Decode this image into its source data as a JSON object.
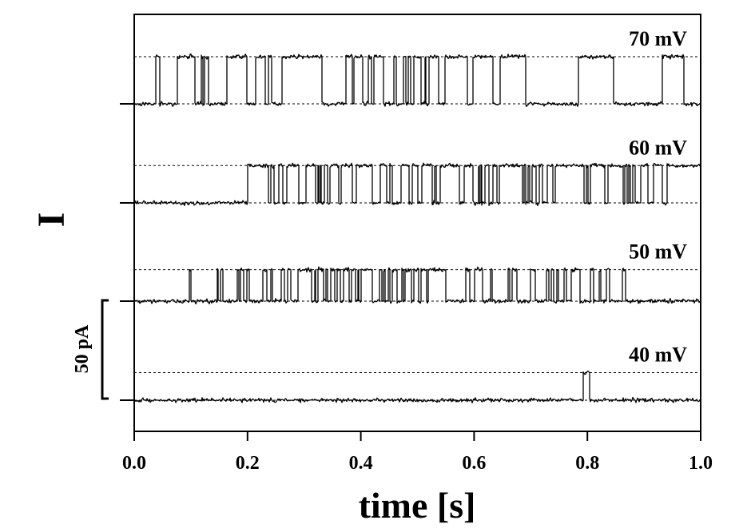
{
  "chart_data": {
    "type": "line",
    "xlabel": "time [s]",
    "ylabel": "I",
    "xlim": [
      0,
      1.0
    ],
    "xticks": [
      0.0,
      0.2,
      0.4,
      0.6,
      0.8,
      1.0
    ],
    "xtick_labels": [
      "0.0",
      "0.2",
      "0.4",
      "0.6",
      "0.8",
      "1.0"
    ],
    "grid": false,
    "scale_bar": {
      "label": "50 pA",
      "value_pA": 50
    },
    "series": [
      {
        "name": "70 mV",
        "open_level_pA": 24,
        "openings_s": [
          [
            0.037,
            0.044
          ],
          [
            0.075,
            0.106
          ],
          [
            0.118,
            0.12
          ],
          [
            0.124,
            0.131
          ],
          [
            0.163,
            0.198
          ],
          [
            0.213,
            0.231
          ],
          [
            0.236,
            0.242
          ],
          [
            0.26,
            0.331
          ],
          [
            0.373,
            0.384
          ],
          [
            0.387,
            0.403
          ],
          [
            0.413,
            0.418
          ],
          [
            0.422,
            0.44
          ],
          [
            0.457,
            0.462
          ],
          [
            0.475,
            0.479
          ],
          [
            0.483,
            0.487
          ],
          [
            0.493,
            0.505
          ],
          [
            0.512,
            0.514
          ],
          [
            0.52,
            0.537
          ],
          [
            0.548,
            0.588
          ],
          [
            0.598,
            0.632
          ],
          [
            0.645,
            0.691
          ],
          [
            0.784,
            0.845
          ],
          [
            0.931,
            0.969
          ]
        ]
      },
      {
        "name": "60 mV",
        "open_level_pA": 19,
        "openings_s": [
          [
            0.2,
            0.236
          ],
          [
            0.241,
            0.246
          ],
          [
            0.254,
            0.262
          ],
          [
            0.269,
            0.29
          ],
          [
            0.302,
            0.319
          ],
          [
            0.323,
            0.325
          ],
          [
            0.328,
            0.33
          ],
          [
            0.335,
            0.341
          ],
          [
            0.345,
            0.36
          ],
          [
            0.365,
            0.385
          ],
          [
            0.392,
            0.42
          ],
          [
            0.434,
            0.445
          ],
          [
            0.45,
            0.455
          ],
          [
            0.47,
            0.484
          ],
          [
            0.49,
            0.5
          ],
          [
            0.507,
            0.526
          ],
          [
            0.53,
            0.532
          ],
          [
            0.539,
            0.574
          ],
          [
            0.582,
            0.598
          ],
          [
            0.607,
            0.609
          ],
          [
            0.611,
            0.613
          ],
          [
            0.618,
            0.625
          ],
          [
            0.632,
            0.639
          ],
          [
            0.644,
            0.685
          ],
          [
            0.688,
            0.69
          ],
          [
            0.694,
            0.698
          ],
          [
            0.701,
            0.709
          ],
          [
            0.714,
            0.72
          ],
          [
            0.728,
            0.738
          ],
          [
            0.742,
            0.793
          ],
          [
            0.798,
            0.8
          ],
          [
            0.805,
            0.83
          ],
          [
            0.836,
            0.862
          ],
          [
            0.866,
            0.87
          ],
          [
            0.873,
            0.875
          ],
          [
            0.88,
            0.883
          ],
          [
            0.894,
            0.906
          ],
          [
            0.916,
            0.931
          ],
          [
            0.94,
            1.0
          ]
        ]
      },
      {
        "name": "50 mV",
        "open_level_pA": 16,
        "openings_s": [
          [
            0.096,
            0.1
          ],
          [
            0.146,
            0.148
          ],
          [
            0.152,
            0.156
          ],
          [
            0.181,
            0.184
          ],
          [
            0.187,
            0.193
          ],
          [
            0.198,
            0.202
          ],
          [
            0.227,
            0.233
          ],
          [
            0.24,
            0.244
          ],
          [
            0.259,
            0.264
          ],
          [
            0.27,
            0.276
          ],
          [
            0.289,
            0.313
          ],
          [
            0.318,
            0.32
          ],
          [
            0.324,
            0.333
          ],
          [
            0.338,
            0.341
          ],
          [
            0.346,
            0.354
          ],
          [
            0.358,
            0.363
          ],
          [
            0.369,
            0.378
          ],
          [
            0.383,
            0.39
          ],
          [
            0.394,
            0.396
          ],
          [
            0.4,
            0.419
          ],
          [
            0.433,
            0.436
          ],
          [
            0.44,
            0.442
          ],
          [
            0.448,
            0.451
          ],
          [
            0.455,
            0.463
          ],
          [
            0.472,
            0.474
          ],
          [
            0.478,
            0.489
          ],
          [
            0.493,
            0.501
          ],
          [
            0.506,
            0.515
          ],
          [
            0.519,
            0.549
          ],
          [
            0.584,
            0.592
          ],
          [
            0.6,
            0.614
          ],
          [
            0.628,
            0.631
          ],
          [
            0.66,
            0.662
          ],
          [
            0.666,
            0.675
          ],
          [
            0.699,
            0.708
          ],
          [
            0.727,
            0.731
          ],
          [
            0.736,
            0.74
          ],
          [
            0.745,
            0.748
          ],
          [
            0.758,
            0.763
          ],
          [
            0.771,
            0.786
          ],
          [
            0.805,
            0.811
          ],
          [
            0.82,
            0.823
          ],
          [
            0.833,
            0.838
          ],
          [
            0.861,
            0.867
          ]
        ]
      },
      {
        "name": "40 mV",
        "open_level_pA": 14,
        "openings_s": [
          [
            0.792,
            0.803
          ]
        ]
      }
    ]
  }
}
